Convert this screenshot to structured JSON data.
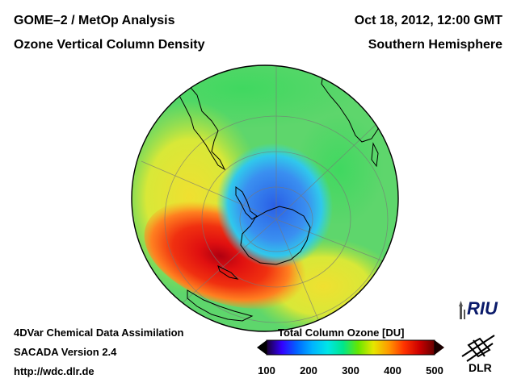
{
  "header": {
    "title_line1": "GOME–2 / MetOp Analysis",
    "title_line2": "Ozone Vertical Column Density",
    "date": "Oct 18, 2012, 12:00 GMT",
    "region": "Southern Hemisphere"
  },
  "footer": {
    "line1": "4DVar Chemical Data Assimilation",
    "line2": "SACADA Version 2.4",
    "line3": "http://wdc.dlr.de"
  },
  "colorbar": {
    "title": "Total Column Ozone [DU]",
    "ticks": [
      "100",
      "200",
      "300",
      "400",
      "500"
    ],
    "min": 100,
    "max": 500,
    "colors": [
      "#1a0033",
      "#3300ff",
      "#0066ff",
      "#00b4ff",
      "#00e6e6",
      "#00e68c",
      "#66e600",
      "#e6e600",
      "#ff9900",
      "#ff3300",
      "#cc0000",
      "#660000"
    ]
  },
  "map": {
    "projection": "orthographic south polar view",
    "colors": {
      "hole_center": "#2a5fe6",
      "hole_edge": "#3a9ef0",
      "collar_cyan": "#30d8e0",
      "green": "#40d860",
      "light_green": "#8fe040",
      "yellow": "#f0e030",
      "orange": "#ffa020",
      "red": "#f02010",
      "dark_red": "#b00010",
      "land_outline": "#000000",
      "grid": "#777777"
    }
  },
  "logos": {
    "riu": "RIU",
    "dlr": "DLR"
  }
}
